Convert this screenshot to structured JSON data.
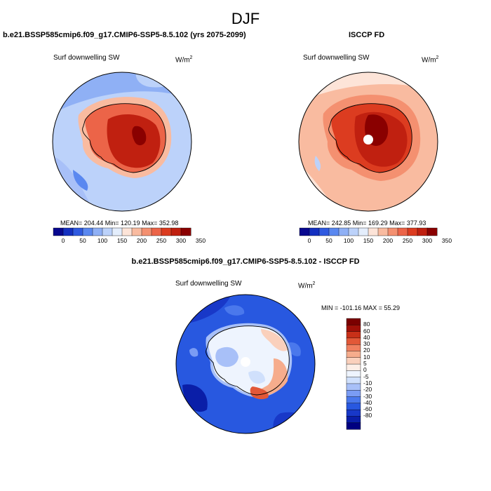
{
  "season": "DJF",
  "panels": [
    {
      "title": "b.e21.BSSP585cmip6.f09_g17.CMIP6-SSP5-8.5.102 (yrs 2075-2099)",
      "variable": "Surf downwelling SW",
      "units": "W/m",
      "units_sup": "2",
      "stats": "MEAN= 204.44  Min= 120.19  Max= 352.98"
    },
    {
      "title": "ISCCP FD",
      "variable": "Surf downwelling SW",
      "units": "W/m",
      "units_sup": "2",
      "stats": "MEAN= 242.85  Min= 169.29  Max= 377.93"
    },
    {
      "title": "b.e21.BSSP585cmip6.f09_g17.CMIP6-SSP5-8.5.102 - ISCCP FD",
      "variable": "Surf downwelling SW",
      "units": "W/m",
      "units_sup": "2",
      "stats": "MIN = -101.16 MAX =  55.29"
    }
  ],
  "colors": {
    "abs_scale": [
      "#08088f",
      "#1430c0",
      "#2f5ae0",
      "#5a88f0",
      "#8fb0f5",
      "#bcd2fa",
      "#e4eefc",
      "#fde4d8",
      "#f9bba0",
      "#f49070",
      "#ec6448",
      "#dc3c20",
      "#c02010",
      "#8a0000"
    ],
    "diff_scale": [
      "#000080",
      "#0a1ea8",
      "#1838c8",
      "#2858e0",
      "#4a78ec",
      "#7a9cf4",
      "#a8c0f8",
      "#d0e0fc",
      "#eef4fe",
      "#fdeee6",
      "#fad0bc",
      "#f6ac8c",
      "#f08060",
      "#e25838",
      "#c83018",
      "#a01008",
      "#7a0000"
    ],
    "ocean_model": "#bcd2fa",
    "ocean_obs": "#f9bba0",
    "ocean_diff": "#2858e0",
    "coast": "#000000"
  },
  "chart_data": [
    {
      "type": "heatmap",
      "projection": "south-polar-stereographic",
      "title": "b.e21.BSSP585cmip6.f09_g17.CMIP6-SSP5-8.5.102 (yrs 2075-2099)",
      "variable": "Surf downwelling SW",
      "units": "W/m2",
      "mean": 204.44,
      "min": 120.19,
      "max": 352.98,
      "colorbar_ticks": [
        "0",
        "50",
        "100",
        "150",
        "200",
        "250",
        "300",
        "350"
      ]
    },
    {
      "type": "heatmap",
      "projection": "south-polar-stereographic",
      "title": "ISCCP FD",
      "variable": "Surf downwelling SW",
      "units": "W/m2",
      "mean": 242.85,
      "min": 169.29,
      "max": 377.93,
      "colorbar_ticks": [
        "0",
        "50",
        "100",
        "150",
        "200",
        "250",
        "300",
        "350"
      ]
    },
    {
      "type": "heatmap",
      "projection": "south-polar-stereographic",
      "title": "b.e21.BSSP585cmip6.f09_g17.CMIP6-SSP5-8.5.102 - ISCCP FD",
      "variable": "Surf downwelling SW",
      "units": "W/m2",
      "min": -101.16,
      "max": 55.29,
      "colorbar_ticks": [
        "80",
        "60",
        "40",
        "30",
        "20",
        "10",
        "5",
        "0",
        "-5",
        "-10",
        "-20",
        "-30",
        "-40",
        "-60",
        "-80"
      ]
    }
  ]
}
